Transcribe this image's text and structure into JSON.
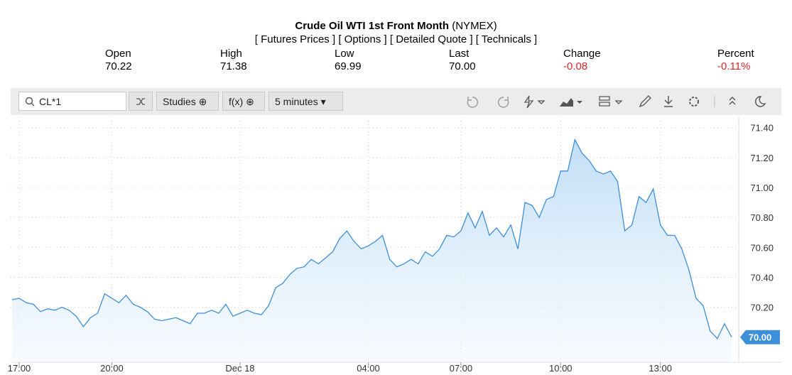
{
  "header": {
    "title": "Crude Oil WTI 1st Front Month",
    "exchange": "(NYMEX)",
    "links": [
      "[ Futures Prices ]",
      "[ Options ]",
      "[ Detailed Quote ]",
      "[ Technicals ]"
    ]
  },
  "quote": [
    {
      "label": "Open",
      "value": "70.22"
    },
    {
      "label": "High",
      "value": "71.38"
    },
    {
      "label": "Low",
      "value": "69.99"
    },
    {
      "label": "Last",
      "value": "70.00"
    },
    {
      "label": "Change",
      "value": "-0.08"
    },
    {
      "label": "Percent",
      "value": "-0.11%"
    }
  ],
  "toolbar": {
    "search": "CL*1",
    "studies": "Studies",
    "fx": "f(x)",
    "interval": "5 minutes"
  },
  "chart_data": {
    "type": "line",
    "color": "#3d8fd9",
    "grid": true,
    "categories": [
      null,
      "17:00",
      null,
      null,
      null,
      null,
      null,
      null,
      null,
      null,
      null,
      null,
      null,
      null,
      "20:00",
      null,
      null,
      null,
      null,
      null,
      null,
      null,
      null,
      null,
      null,
      null,
      null,
      null,
      null,
      null,
      null,
      null,
      "Dec 18",
      null,
      null,
      null,
      null,
      null,
      null,
      null,
      null,
      null,
      null,
      null,
      null,
      null,
      null,
      null,
      null,
      null,
      "04:00",
      null,
      null,
      null,
      null,
      null,
      null,
      null,
      null,
      null,
      null,
      null,
      null,
      "07:00",
      null,
      null,
      null,
      null,
      null,
      null,
      null,
      null,
      null,
      null,
      null,
      null,
      null,
      "10:00",
      null,
      null,
      null,
      null,
      null,
      null,
      null,
      null,
      null,
      null,
      null,
      null,
      null,
      "13:00",
      null,
      null,
      null,
      null,
      null,
      null,
      null,
      null,
      null,
      null
    ],
    "values": [
      70.25,
      70.26,
      70.23,
      70.22,
      70.17,
      70.19,
      70.18,
      70.2,
      70.18,
      70.14,
      70.07,
      70.13,
      70.16,
      70.29,
      70.26,
      70.23,
      70.28,
      70.22,
      70.2,
      70.17,
      70.12,
      70.11,
      70.12,
      70.13,
      70.11,
      70.09,
      70.16,
      70.16,
      70.18,
      70.16,
      70.22,
      70.14,
      70.16,
      70.18,
      70.16,
      70.15,
      70.21,
      70.33,
      70.36,
      70.42,
      70.46,
      70.47,
      70.52,
      70.49,
      70.53,
      70.57,
      70.66,
      70.71,
      70.64,
      70.59,
      70.61,
      70.64,
      70.68,
      70.52,
      70.47,
      70.49,
      70.52,
      70.49,
      70.57,
      70.54,
      70.59,
      70.68,
      70.67,
      70.71,
      70.83,
      70.73,
      70.84,
      70.68,
      70.73,
      70.67,
      70.75,
      70.59,
      70.9,
      70.88,
      70.8,
      70.92,
      70.94,
      71.11,
      71.11,
      71.32,
      71.23,
      71.18,
      71.11,
      71.09,
      71.11,
      71.04,
      70.71,
      70.75,
      70.94,
      70.9,
      70.99,
      70.75,
      70.68,
      70.68,
      70.59,
      70.45,
      70.26,
      70.21,
      70.04,
      69.99,
      70.09,
      70.0
    ],
    "ylim": [
      69.88,
      71.47
    ],
    "yticks": [
      {
        "value": 70.2,
        "label": "70.20"
      },
      {
        "value": 70.4,
        "label": "70.40"
      },
      {
        "value": 70.6,
        "label": "70.60"
      },
      {
        "value": 70.8,
        "label": "70.80"
      },
      {
        "value": 71.0,
        "label": "71.00"
      },
      {
        "value": 71.2,
        "label": "71.20"
      },
      {
        "value": 71.4,
        "label": "71.40"
      }
    ]
  }
}
